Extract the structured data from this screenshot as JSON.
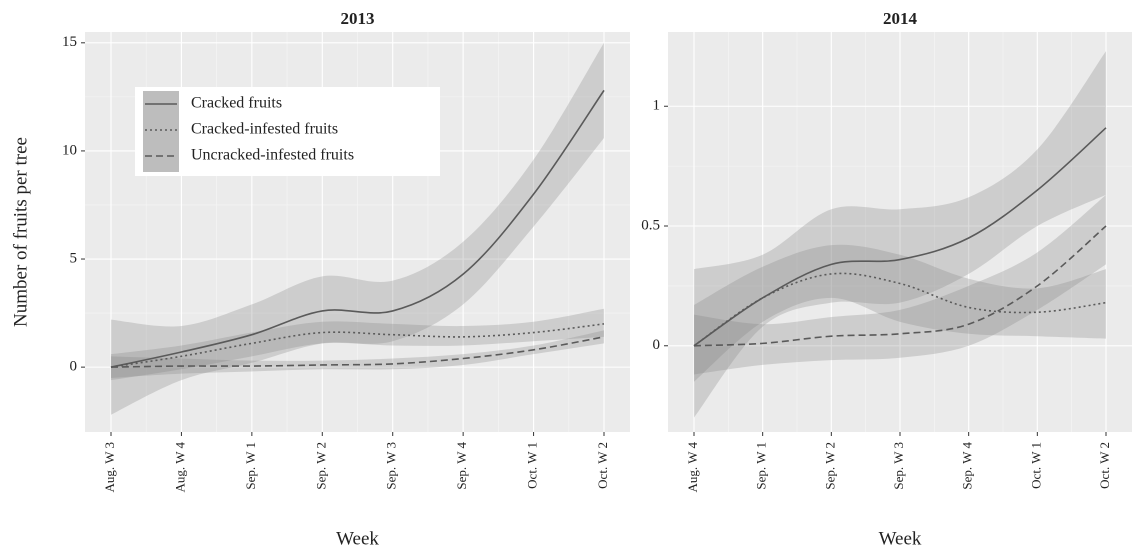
{
  "chart_data": [
    {
      "type": "line",
      "title": "2013",
      "xlabel": "Week",
      "ylabel": "Number of fruits per tree",
      "categories": [
        "Aug. W 3",
        "Aug. W 4",
        "Sep. W 1",
        "Sep. W 2",
        "Sep. W 3",
        "Sep. W 4",
        "Oct. W 1",
        "Oct. W 2"
      ],
      "ylim": [
        -3,
        15.5
      ],
      "yticks": [
        0,
        5,
        10,
        15
      ],
      "grid": true,
      "legend": "top-left",
      "series": [
        {
          "name": "Cracked fruits",
          "color": "#5a5a5a",
          "dash": "solid",
          "values": [
            0,
            0.7,
            1.5,
            2.6,
            2.6,
            4.3,
            8.0,
            12.8
          ],
          "lower": [
            -2.2,
            -0.6,
            0.2,
            1.1,
            1.2,
            2.9,
            6.5,
            10.6
          ],
          "upper": [
            2.2,
            1.9,
            2.9,
            4.2,
            4.0,
            5.8,
            9.6,
            15.0
          ]
        },
        {
          "name": "Cracked-infested fruits",
          "color": "#5a5a5a",
          "dash": "dotted",
          "values": [
            0,
            0.5,
            1.1,
            1.6,
            1.5,
            1.4,
            1.6,
            2.0
          ],
          "lower": [
            -0.6,
            -0.1,
            0.5,
            1.1,
            1.0,
            1.0,
            1.2,
            1.4
          ],
          "upper": [
            0.6,
            1.0,
            1.6,
            2.1,
            2.0,
            1.9,
            2.1,
            2.7
          ]
        },
        {
          "name": "Uncracked-infested fruits",
          "color": "#5a5a5a",
          "dash": "dashed",
          "values": [
            0,
            0.05,
            0.05,
            0.1,
            0.15,
            0.4,
            0.8,
            1.4
          ],
          "lower": [
            -0.5,
            -0.3,
            -0.2,
            -0.1,
            -0.1,
            0.1,
            0.6,
            1.1
          ],
          "upper": [
            0.5,
            0.4,
            0.3,
            0.3,
            0.4,
            0.6,
            1.0,
            1.7
          ]
        }
      ]
    },
    {
      "type": "line",
      "title": "2014",
      "xlabel": "Week",
      "categories": [
        "Aug. W 4",
        "Sep. W 1",
        "Sep. W 2",
        "Sep. W 3",
        "Sep. W 4",
        "Oct. W 1",
        "Oct. W 2"
      ],
      "ylim": [
        -0.36,
        1.31
      ],
      "yticks": [
        0,
        0.5,
        1
      ],
      "grid": true,
      "series": [
        {
          "color": "#5a5a5a",
          "dash": "solid",
          "values": [
            0,
            0.2,
            0.34,
            0.36,
            0.45,
            0.65,
            0.91
          ],
          "lower": [
            -0.3,
            0.08,
            0.18,
            0.18,
            0.3,
            0.5,
            0.63
          ],
          "upper": [
            0.32,
            0.38,
            0.57,
            0.57,
            0.62,
            0.82,
            1.23
          ]
        },
        {
          "color": "#5a5a5a",
          "dash": "dotted",
          "values": [
            0,
            0.2,
            0.3,
            0.26,
            0.16,
            0.14,
            0.18
          ],
          "lower": [
            -0.15,
            0.1,
            0.2,
            0.1,
            0.05,
            0.04,
            0.03
          ],
          "upper": [
            0.17,
            0.33,
            0.42,
            0.38,
            0.28,
            0.24,
            0.32
          ]
        },
        {
          "color": "#5a5a5a",
          "dash": "dashed",
          "values": [
            0,
            0.01,
            0.04,
            0.05,
            0.09,
            0.25,
            0.5
          ],
          "lower": [
            -0.12,
            -0.08,
            -0.06,
            -0.05,
            0.0,
            0.15,
            0.34
          ],
          "upper": [
            0.13,
            0.09,
            0.12,
            0.15,
            0.25,
            0.39,
            0.63
          ]
        }
      ]
    }
  ]
}
